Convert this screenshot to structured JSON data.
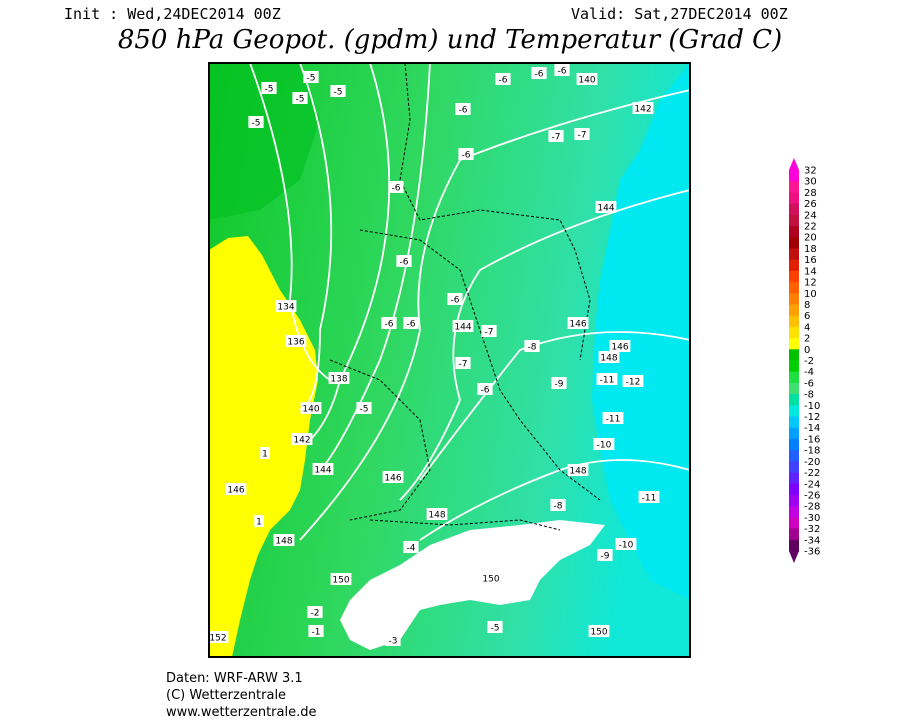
{
  "header": {
    "init": "Init : Wed,24DEC2014 00Z",
    "valid": "Valid: Sat,27DEC2014 00Z",
    "title": "850 hPa Geopot. (gpdm) und Temperatur (Grad C)"
  },
  "map": {
    "labels": [
      "-5",
      "-5",
      "-5",
      "-5",
      "-5",
      "-6",
      "-6",
      "-6",
      "140",
      "142",
      "-6",
      "-7",
      "-7",
      "-6",
      "-6",
      "144",
      "-6",
      "134",
      "136",
      "-6",
      "144",
      "-7",
      "-6",
      "-6",
      "146",
      "146",
      "148",
      "-8",
      "-11",
      "-12",
      "-9",
      "138",
      "-6",
      "-7",
      "140",
      "-5",
      "-11",
      "142",
      "-10",
      "144",
      "146",
      "148",
      "-11",
      "146",
      "148",
      "-8",
      "148",
      "-10",
      "150",
      "-9",
      "150",
      "150",
      "152",
      "-5",
      "-3",
      "-4",
      "1",
      "1",
      "-1",
      "-2"
    ]
  },
  "colorbar": {
    "labels": [
      32,
      30,
      28,
      26,
      24,
      22,
      20,
      18,
      16,
      14,
      12,
      10,
      8,
      6,
      4,
      2,
      0,
      -2,
      -4,
      -6,
      -8,
      -10,
      -12,
      -14,
      -16,
      -18,
      -20,
      -22,
      -24,
      -26,
      -28,
      -30,
      -32,
      -34,
      -36
    ],
    "colors": [
      "#ff00dd",
      "#ff1493",
      "#ee1080",
      "#d0105a",
      "#c01040",
      "#b00020",
      "#a00000",
      "#c01010",
      "#e02000",
      "#ff4000",
      "#ff6000",
      "#ff8000",
      "#ffa000",
      "#ffc000",
      "#ffe000",
      "#ffff00",
      "#00c000",
      "#00d000",
      "#20e040",
      "#40e070",
      "#00e0a0",
      "#00e8e0",
      "#00c8ff",
      "#00a0ff",
      "#0080ff",
      "#2060ff",
      "#4040ff",
      "#6020ff",
      "#8000ff",
      "#a000f0",
      "#c000e0",
      "#d000c0",
      "#a00090",
      "#600060"
    ]
  },
  "footer": {
    "line1": "Daten: WRF-ARW 3.1",
    "line2": "(C) Wetterzentrale",
    "line3": "www.wetterzentrale.de"
  }
}
